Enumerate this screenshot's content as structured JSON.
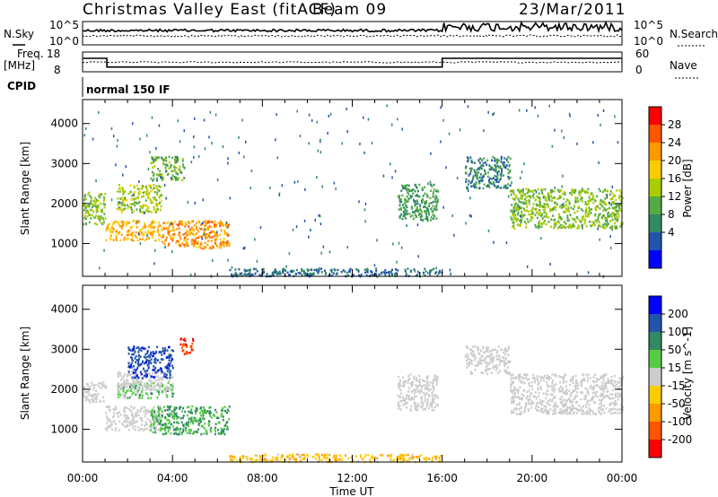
{
  "header": {
    "station": "Christmas Valley East (fitACF)",
    "beam": "Beam 09",
    "date": "23/Mar/2011"
  },
  "noise_panel": {
    "left_label": "N.Sky",
    "right_label": "N.Search",
    "left_ticks": [
      "10^5",
      "10^0"
    ],
    "right_ticks": [
      "10^5",
      "10^0"
    ]
  },
  "freq_panel": {
    "left_label_top": "Freq.",
    "left_label_bottom": "[MHz]",
    "left_ticks": [
      "18",
      "8"
    ],
    "right_label": "Nave",
    "right_ticks": [
      "60",
      "0"
    ],
    "frequency_mhz": [
      {
        "t_start": "00:00",
        "t_end": "01:05",
        "value": 14.8
      },
      {
        "t_start": "01:05",
        "t_end": "16:00",
        "value": 10.4
      },
      {
        "t_start": "16:00",
        "t_end": "24:00",
        "value": 14.8
      }
    ],
    "nave_mean": 29
  },
  "cpid": {
    "label": "CPID",
    "program": "normal 150 IF"
  },
  "chart_data": [
    {
      "type": "heatmap",
      "parameter": "Power",
      "ylabel": "Slant Range [km]",
      "xlabel": "",
      "colorbar_label": "Power [dB]",
      "colorbar_ticks": [
        "28",
        "24",
        "20",
        "16",
        "12",
        "8",
        "4"
      ],
      "colorbar_colors": [
        "#ff0000",
        "#ff5500",
        "#ff9900",
        "#ffcc00",
        "#aacc00",
        "#55aa44",
        "#338866",
        "#2255aa",
        "#0000ff"
      ],
      "x_ticks": [
        "00:00",
        "04:00",
        "08:00",
        "12:00",
        "16:00",
        "20:00",
        "00:00"
      ],
      "y_ticks": [
        "1000",
        "2000",
        "3000",
        "4000"
      ],
      "xlim": [
        0,
        24
      ],
      "ylim": [
        180,
        4600
      ],
      "scatter_regions": [
        {
          "t": [
            0.0,
            1.0
          ],
          "r": [
            1500,
            2300
          ],
          "p": 14
        },
        {
          "t": [
            1.0,
            3.5
          ],
          "r": [
            1100,
            1600
          ],
          "p": 22
        },
        {
          "t": [
            1.5,
            3.5
          ],
          "r": [
            1800,
            2500
          ],
          "p": 16
        },
        {
          "t": [
            3.0,
            4.5
          ],
          "r": [
            2600,
            3200
          ],
          "p": 12
        },
        {
          "t": [
            3.5,
            6.5
          ],
          "r": [
            900,
            1600
          ],
          "p": 24
        },
        {
          "t": [
            14.0,
            15.8
          ],
          "r": [
            1600,
            2500
          ],
          "p": 10
        },
        {
          "t": [
            17.0,
            19.0
          ],
          "r": [
            2400,
            3200
          ],
          "p": 8
        },
        {
          "t": [
            19.0,
            24.0
          ],
          "r": [
            1400,
            2400
          ],
          "p": 14
        },
        {
          "t": [
            6.5,
            16.0
          ],
          "r": [
            200,
            400
          ],
          "p": 6
        },
        {
          "t": [
            0.0,
            24.0
          ],
          "r": [
            200,
            4500
          ],
          "p": 6
        }
      ]
    },
    {
      "type": "heatmap",
      "parameter": "Velocity",
      "ylabel": "Slant Range [km]",
      "xlabel": "Time UT",
      "colorbar_label": "Velocity [m s^-1]",
      "colorbar_ticks": [
        "200",
        "100",
        "50",
        "15",
        "-15",
        "-50",
        "-100",
        "-200"
      ],
      "colorbar_colors": [
        "#0000ff",
        "#2255aa",
        "#338866",
        "#55cc44",
        "#cccccc",
        "#ffcc00",
        "#ff9900",
        "#ff5500",
        "#ff0000"
      ],
      "x_ticks": [
        "00:00",
        "04:00",
        "08:00",
        "12:00",
        "16:00",
        "20:00",
        "00:00"
      ],
      "y_ticks": [
        "1000",
        "2000",
        "3000",
        "4000"
      ],
      "xlim": [
        0,
        24
      ],
      "ylim": [
        180,
        4600
      ],
      "scatter_regions": [
        {
          "t": [
            0.0,
            1.0
          ],
          "r": [
            1700,
            2200
          ],
          "v": 0
        },
        {
          "t": [
            1.0,
            3.5
          ],
          "r": [
            1000,
            1600
          ],
          "v": 0
        },
        {
          "t": [
            1.5,
            4.0
          ],
          "r": [
            1800,
            2200
          ],
          "v": 30
        },
        {
          "t": [
            1.5,
            4.0
          ],
          "r": [
            2000,
            2500
          ],
          "v": 0
        },
        {
          "t": [
            2.0,
            4.0
          ],
          "r": [
            2300,
            3100
          ],
          "v": 180
        },
        {
          "t": [
            3.0,
            6.5
          ],
          "r": [
            900,
            1600
          ],
          "v": 50
        },
        {
          "t": [
            4.3,
            4.9
          ],
          "r": [
            2900,
            3300
          ],
          "v": -200
        },
        {
          "t": [
            14.0,
            15.8
          ],
          "r": [
            1500,
            2400
          ],
          "v": 0
        },
        {
          "t": [
            17.0,
            19.0
          ],
          "r": [
            2400,
            3100
          ],
          "v": 0
        },
        {
          "t": [
            19.0,
            24.0
          ],
          "r": [
            1400,
            2400
          ],
          "v": 0
        },
        {
          "t": [
            6.5,
            16.0
          ],
          "r": [
            200,
            400
          ],
          "v": -40
        }
      ]
    }
  ]
}
